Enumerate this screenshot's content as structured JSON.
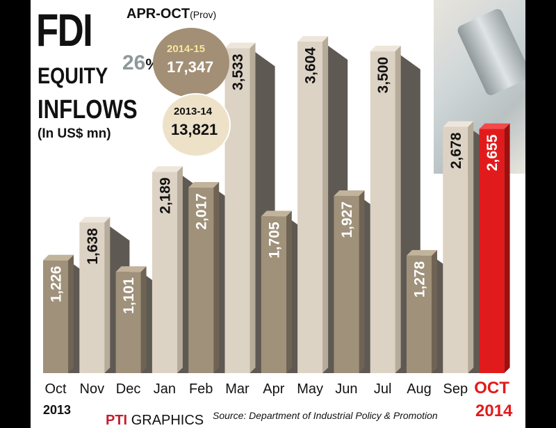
{
  "header": {
    "title_big": "FDI",
    "title_line2": "EQUITY",
    "title_line3": "INFLOWS",
    "unit": "(In US$ mn)",
    "period": "APR-OCT",
    "period_note": "(Prov)",
    "growth": "26",
    "growth_symbol": "%",
    "compare": [
      {
        "year": "2014-15",
        "value": "17,347"
      },
      {
        "year": "2013-14",
        "value": "13,821"
      }
    ]
  },
  "footer": {
    "year_start": "2013",
    "year_end": "2014",
    "brand": "PTI",
    "brand_suffix": "GRAPHICS",
    "source": "Source: Department of Industrial Policy & Promotion"
  },
  "colors": {
    "bar_dark": "#a0917a",
    "bar_light": "#ddd3c5",
    "bar_highlight": "#e11b1b",
    "shadow": "#5f5954",
    "badge_dark": "#a28f75",
    "badge_light": "#ede2c8"
  },
  "chart_data": {
    "type": "bar",
    "title": "FDI EQUITY INFLOWS (In US$ mn)",
    "categories": [
      "Oct",
      "Nov",
      "Dec",
      "Jan",
      "Feb",
      "Mar",
      "Apr",
      "May",
      "Jun",
      "Jul",
      "Aug",
      "Sep",
      "OCT"
    ],
    "values": [
      1226,
      1638,
      1101,
      2189,
      2017,
      3533,
      1705,
      3604,
      1927,
      3500,
      1278,
      2678,
      2655
    ],
    "value_labels": [
      "1,226",
      "1,638",
      "1,101",
      "2,189",
      "2,017",
      "3,533",
      "1,705",
      "3,604",
      "1,927",
      "3,500",
      "1,278",
      "2,678",
      "2,655"
    ],
    "highlight_index": 12,
    "ylim": [
      0,
      3604
    ],
    "grid": false
  }
}
